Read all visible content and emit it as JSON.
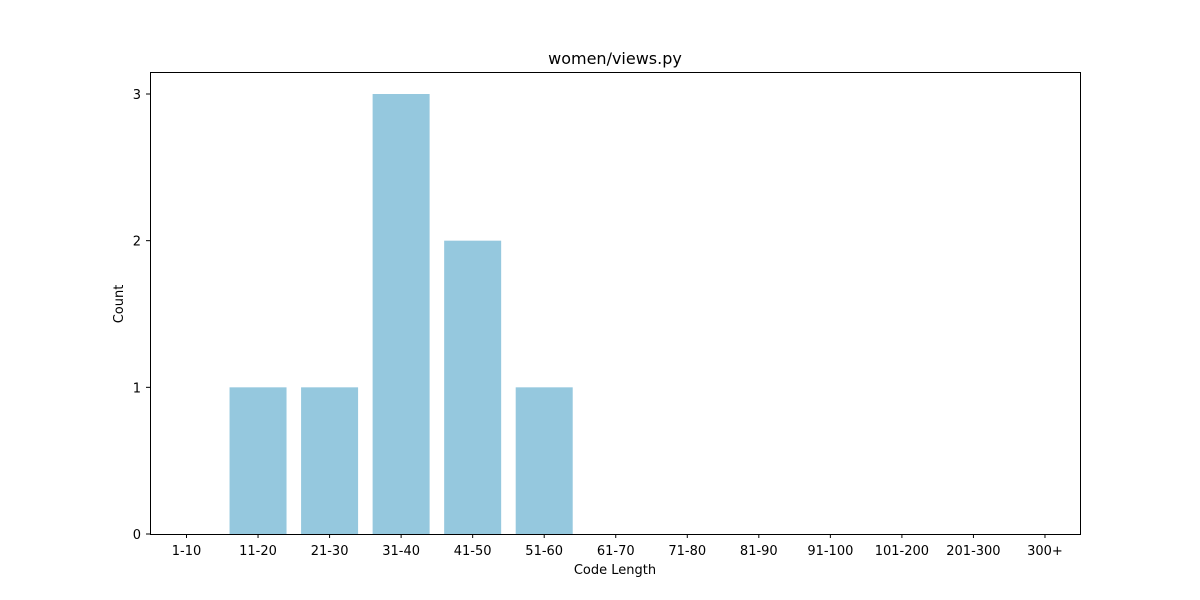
{
  "chart_data": {
    "type": "bar",
    "title": "women/views.py",
    "xlabel": "Code Length",
    "ylabel": "Count",
    "categories": [
      "1-10",
      "11-20",
      "21-30",
      "31-40",
      "41-50",
      "51-60",
      "61-70",
      "71-80",
      "81-90",
      "91-100",
      "101-200",
      "201-300",
      "300+"
    ],
    "values": [
      0,
      1,
      1,
      3,
      2,
      1,
      0,
      0,
      0,
      0,
      0,
      0,
      0
    ],
    "ylim": [
      0,
      3.15
    ],
    "yticks": [
      0,
      1,
      2,
      3
    ],
    "bar_color": "#95c8de",
    "grid": false,
    "legend": "none"
  }
}
